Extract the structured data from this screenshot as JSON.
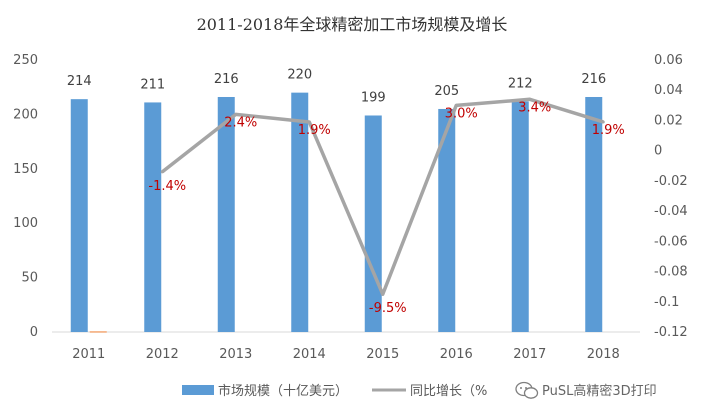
{
  "chart_data": {
    "type": "bar",
    "title": "2011-2018年全球精密加工市场规模及增长",
    "categories": [
      "2011",
      "2012",
      "2013",
      "2014",
      "2015",
      "2016",
      "2017",
      "2018"
    ],
    "series": [
      {
        "name": "市场规模（十亿美元）",
        "kind": "bar",
        "axis": "left",
        "color": "#5b9bd5",
        "values": [
          214,
          211,
          216,
          220,
          199,
          205,
          212,
          216
        ],
        "labels": [
          "214",
          "211",
          "216",
          "220",
          "199",
          "205",
          "212",
          "216"
        ]
      },
      {
        "name": "同比增长（%）",
        "legend_text": "同比增长（%",
        "kind": "line",
        "axis": "right",
        "color": "#a5a5a5",
        "values": [
          null,
          -0.014,
          0.024,
          0.019,
          -0.095,
          0.03,
          0.034,
          0.019
        ],
        "labels": [
          "",
          "-1.4%",
          "2.4%",
          "1.9%",
          "-9.5%",
          "3.0%",
          "3.4%",
          "1.9%"
        ],
        "label_color": "#c00000"
      }
    ],
    "small_bar": {
      "category": "2011",
      "value": 0.5,
      "color": "#ed7d31"
    },
    "y_left": {
      "min": 0,
      "max": 250,
      "ticks": [
        0,
        50,
        100,
        150,
        200,
        250
      ]
    },
    "y_right": {
      "min": -0.12,
      "max": 0.06,
      "ticks": [
        -0.12,
        -0.1,
        -0.08,
        -0.06,
        -0.04,
        -0.02,
        0,
        0.02,
        0.04,
        0.06
      ],
      "tick_labels": [
        "-0.12",
        "-0.1",
        "-0.08",
        "-0.06",
        "-0.04",
        "-0.02",
        "0",
        "0.02",
        "0.04",
        "0.06"
      ]
    },
    "grid": false,
    "legend_position": "bottom"
  },
  "watermark": {
    "text": "PuSL高精密3D打印",
    "icon": "wechat-icon"
  }
}
